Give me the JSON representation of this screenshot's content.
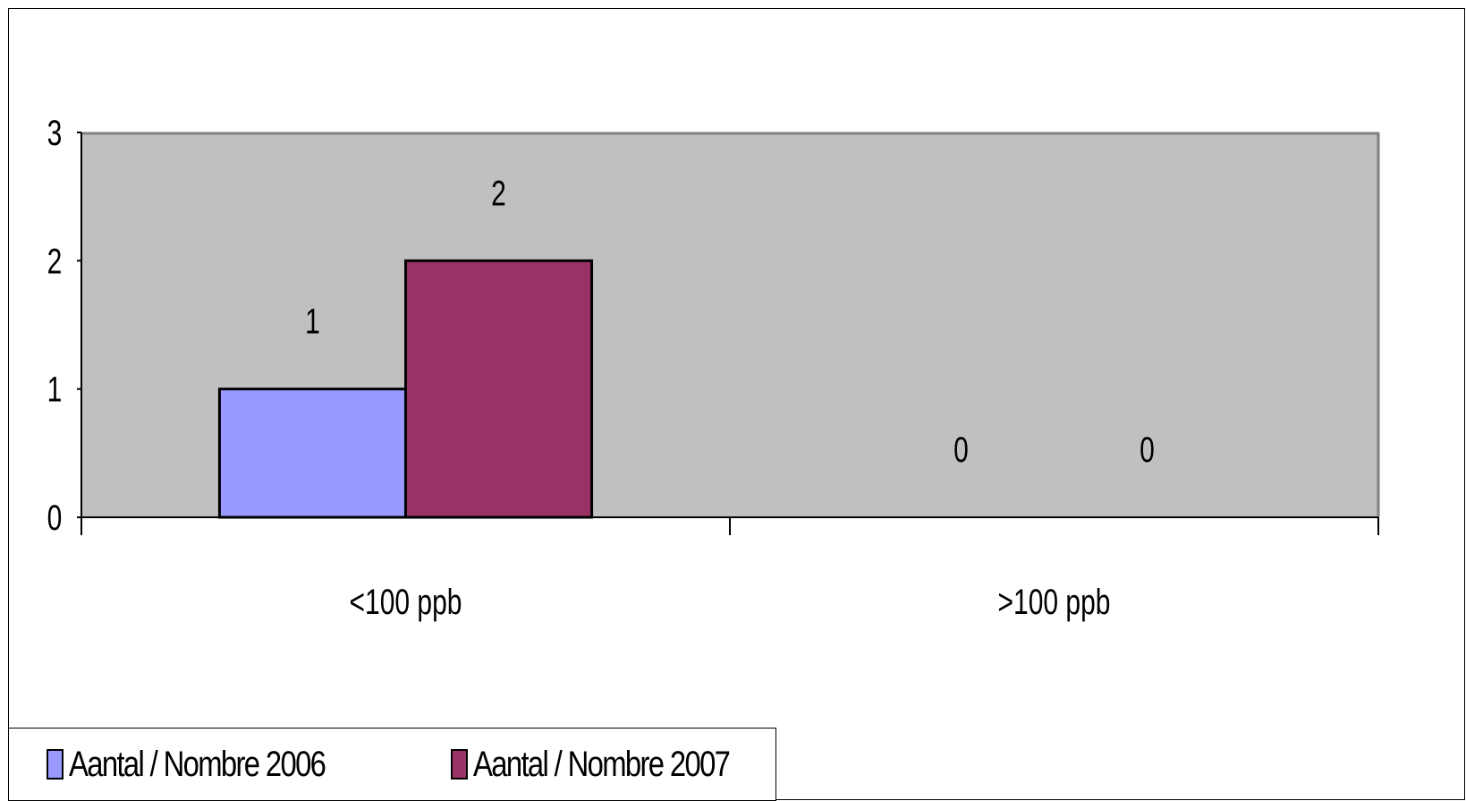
{
  "chart_data": {
    "type": "bar",
    "categories": [
      "<100 ppb",
      ">100 ppb"
    ],
    "series": [
      {
        "name": "Aantal / Nombre 2006",
        "values": [
          1,
          0
        ],
        "color": "#9999ff"
      },
      {
        "name": "Aantal / Nombre 2007",
        "values": [
          2,
          0
        ],
        "color": "#993366"
      }
    ],
    "yticks": [
      "0",
      "1",
      "2",
      "3"
    ],
    "ylim": [
      0,
      3
    ],
    "data_labels": true,
    "plot_background": "#c0c0c0",
    "grid": false,
    "legend": "bottom-left"
  }
}
